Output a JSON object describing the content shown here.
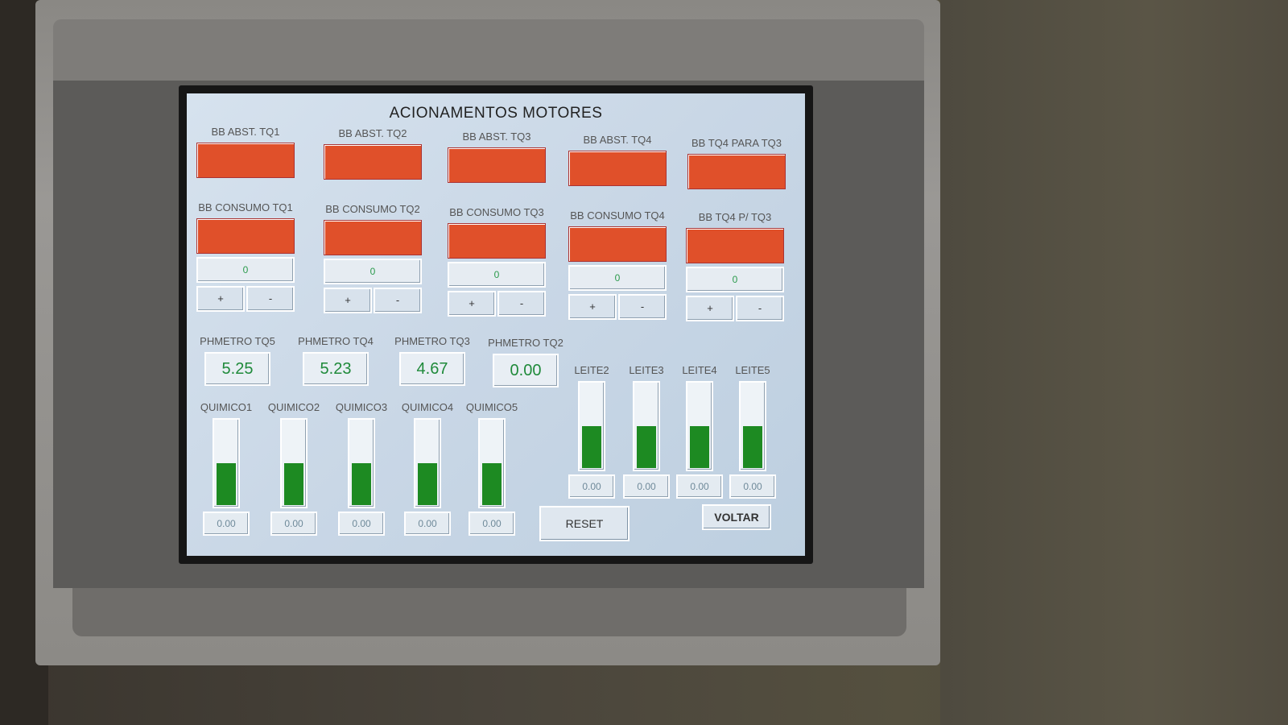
{
  "hmi": {
    "title": "ACIONAMENTOS MOTORES",
    "abst": [
      {
        "label": "BB ABST. TQ1"
      },
      {
        "label": "BB ABST. TQ2"
      },
      {
        "label": "BB ABST. TQ3"
      },
      {
        "label": "BB ABST. TQ4"
      },
      {
        "label": "BB TQ4 PARA TQ3"
      }
    ],
    "consumo": [
      {
        "label": "BB CONSUMO TQ1",
        "value": "0"
      },
      {
        "label": "BB CONSUMO TQ2",
        "value": "0"
      },
      {
        "label": "BB CONSUMO TQ3",
        "value": "0"
      },
      {
        "label": "BB CONSUMO TQ4",
        "value": "0"
      },
      {
        "label": "BB TQ4 P/ TQ3",
        "value": "0"
      }
    ],
    "plus_label": "+",
    "minus_label": "-",
    "phmetros": [
      {
        "label": "PHMETRO  TQ5",
        "value": "5.25"
      },
      {
        "label": "PHMETRO TQ4",
        "value": "5.23"
      },
      {
        "label": "PHMETRO TQ3",
        "value": "4.67"
      },
      {
        "label": "PHMETRO TQ2",
        "value": "0.00"
      }
    ],
    "quimicos": [
      {
        "label": "QUIMICO1",
        "value": "0.00",
        "level": 0.5
      },
      {
        "label": "QUIMICO2",
        "value": "0.00",
        "level": 0.5
      },
      {
        "label": "QUIMICO3",
        "value": "0.00",
        "level": 0.5
      },
      {
        "label": "QUIMICO4",
        "value": "0.00",
        "level": 0.5
      },
      {
        "label": "QUIMICO5",
        "value": "0.00",
        "level": 0.5
      }
    ],
    "leites": [
      {
        "label": "LEITE2",
        "value": "0.00",
        "level": 0.5
      },
      {
        "label": "LEITE3",
        "value": "0.00",
        "level": 0.5
      },
      {
        "label": "LEITE4",
        "value": "0.00",
        "level": 0.5
      },
      {
        "label": "LEITE5",
        "value": "0.00",
        "level": 0.5
      }
    ],
    "reset_label": "RESET",
    "voltar_label": "VOLTAR",
    "colors": {
      "lamp_off": "#e0502a",
      "level": "#1d8a22",
      "ph_text": "#1f8a3a"
    }
  }
}
